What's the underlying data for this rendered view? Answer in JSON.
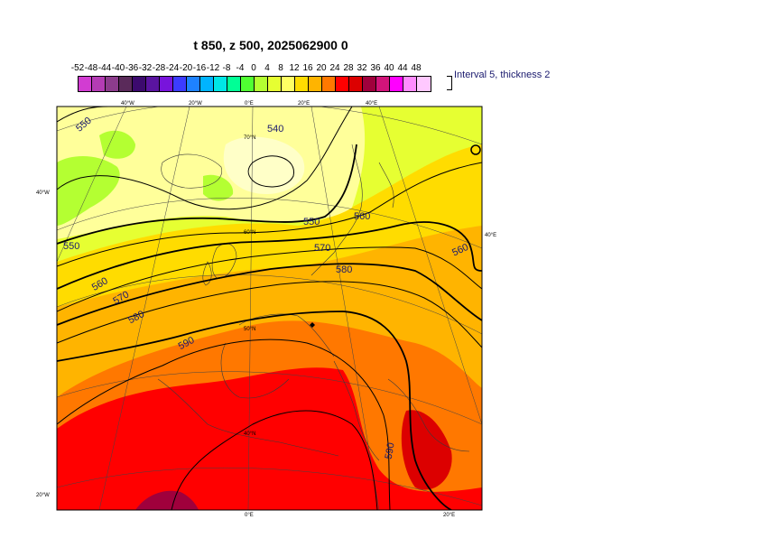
{
  "title": "t 850, z 500, 2025062900 0",
  "legend": {
    "labels": [
      "-52",
      "-48",
      "-44",
      "-40",
      "-36",
      "-32",
      "-28",
      "-24",
      "-20",
      "-16",
      "-12",
      "-8",
      "-4",
      "0",
      "4",
      "8",
      "12",
      "16",
      "20",
      "24",
      "28",
      "32",
      "36",
      "40",
      "44",
      "48"
    ],
    "colors": [
      "#d23cd2",
      "#b43cb4",
      "#8c3c8c",
      "#5a2a5a",
      "#3c0a6e",
      "#5a14a0",
      "#7814dc",
      "#3c3cff",
      "#1e82ff",
      "#00b4ff",
      "#00e6e6",
      "#00ff96",
      "#50ff32",
      "#b4ff32",
      "#e6ff32",
      "#ffff64",
      "#ffdc00",
      "#ffb400",
      "#ff7800",
      "#ff0000",
      "#dc0000",
      "#a0003c",
      "#d2147a",
      "#ff00ff",
      "#ff8cff",
      "#ffc8ff"
    ],
    "note": "Interval 5, thickness 2"
  },
  "map": {
    "lon_labels_top": [
      "40°W",
      "20°W",
      "0°E",
      "20°E",
      "40°E"
    ],
    "lon_labels_bottom": [
      "0°E",
      "20°E"
    ],
    "lat_labels_left": [
      "40°W",
      "20°W"
    ],
    "lat_labels_right": [
      "40°E"
    ],
    "lat_labels_inside": [
      "70°N",
      "60°N",
      "50°N",
      "40°N"
    ],
    "contour_labels": [
      "550",
      "540",
      "550",
      "560",
      "550",
      "570",
      "560",
      "560",
      "570",
      "580",
      "580",
      "590",
      "590"
    ],
    "colors": {
      "cold": "#ffff9a",
      "light": "#ffffc8",
      "mild": "#e6ff32",
      "warm1": "#ffdc00",
      "warm2": "#ffb400",
      "warm3": "#ff7800",
      "hot": "#ff0000",
      "hotter": "#dc0000",
      "hottest": "#a0003c",
      "green": "#b4ff32"
    }
  }
}
